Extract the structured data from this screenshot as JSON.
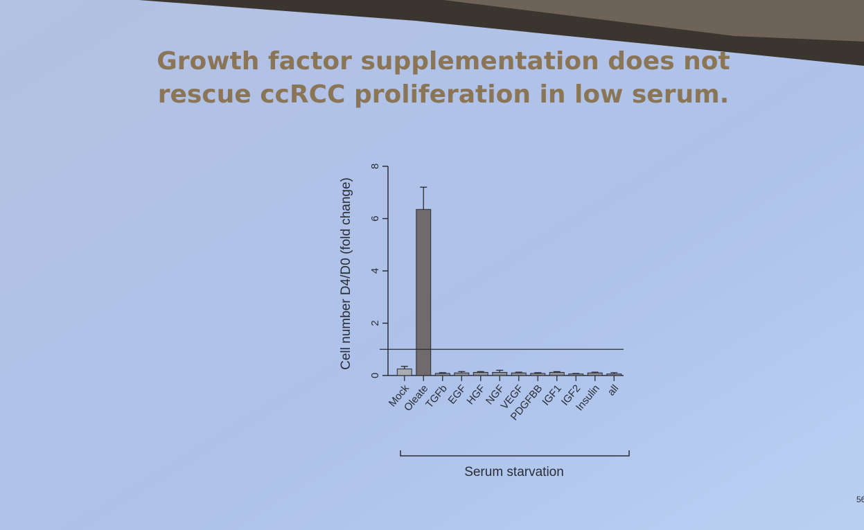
{
  "chart_data": {
    "type": "bar",
    "title": "Growth factor supplementation does not rescue ccRCC proliferation in low serum.",
    "ylabel": "Cell number D4/D0 (fold change)",
    "group_label": "Serum starvation",
    "page_number": "56",
    "categories": [
      "Mock",
      "Oleate",
      "TGFb",
      "EGF",
      "HGF",
      "NGF",
      "VEGF",
      "PDGFBB",
      "IGF1",
      "IGF2",
      "Insulin",
      "all"
    ],
    "values": [
      0.25,
      6.35,
      0.08,
      0.1,
      0.12,
      0.12,
      0.1,
      0.08,
      0.12,
      0.06,
      0.1,
      0.06
    ],
    "errors": [
      0.1,
      0.85,
      0.03,
      0.05,
      0.03,
      0.08,
      0.03,
      0.03,
      0.03,
      0.02,
      0.03,
      0.05
    ],
    "colors": [
      "#a9acb3",
      "#6f6a6c",
      "#8d8f96",
      "#8d8f96",
      "#8d8f96",
      "#8d8f96",
      "#8d8f96",
      "#8d8f96",
      "#8d8f96",
      "#8d8f96",
      "#8d8f96",
      "#8d8f96"
    ],
    "reference_line": 1,
    "ylim": [
      0,
      8
    ],
    "yticks": [
      0,
      2,
      4,
      6,
      8
    ]
  }
}
